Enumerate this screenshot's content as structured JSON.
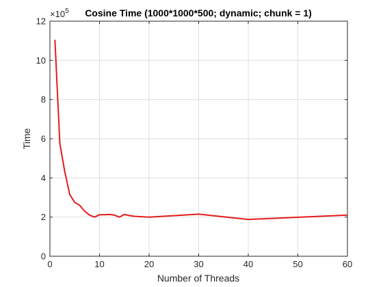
{
  "chart_data": {
    "type": "line",
    "title": "Cosine Time (1000*1000*500; dynamic; chunk = 1)",
    "xlabel": "Number of Threads",
    "ylabel": "Time",
    "y_multiplier_base": "×10",
    "y_multiplier_exp": "5",
    "xlim": [
      0,
      60
    ],
    "ylim": [
      0,
      12
    ],
    "xticks": [
      0,
      10,
      20,
      30,
      40,
      50,
      60
    ],
    "yticks": [
      0,
      2,
      4,
      6,
      8,
      10,
      12
    ],
    "grid": true,
    "series": [
      {
        "color": "#e41a1c",
        "x": [
          1,
          2,
          3,
          4,
          5,
          6,
          7,
          8,
          9,
          10,
          11,
          12,
          13,
          14,
          15,
          16,
          17,
          20,
          30,
          40,
          60
        ],
        "y": [
          11.05,
          5.75,
          4.3,
          3.15,
          2.75,
          2.6,
          2.3,
          2.1,
          2.0,
          2.12,
          2.12,
          2.13,
          2.1,
          2.0,
          2.13,
          2.08,
          2.04,
          2.0,
          2.15,
          1.88,
          2.1
        ]
      }
    ]
  }
}
